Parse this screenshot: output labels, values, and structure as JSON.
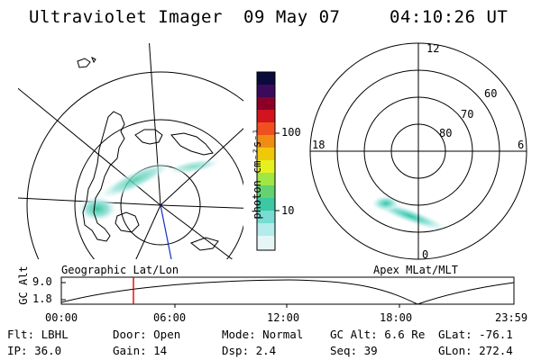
{
  "header": {
    "instrument": "Ultraviolet Imager",
    "date": "09 May 07",
    "time": "04:10:26 UT"
  },
  "panels": {
    "left_label": "Geographic Lat/Lon",
    "right_label": "Apex MLat/MLT"
  },
  "colorbar": {
    "unit_label": "photon cm⁻²s⁻¹",
    "ticks": [
      "100",
      "10"
    ],
    "colors": [
      "#0a0a3c",
      "#3c0a5a",
      "#8c0028",
      "#d2141e",
      "#f05020",
      "#f08c14",
      "#f0c80a",
      "#e6f01e",
      "#a0e646",
      "#64d26e",
      "#3cc8a0",
      "#78dcd2",
      "#b4ebeb",
      "#e6f5f5"
    ]
  },
  "polar_plot": {
    "mlt_labels": [
      "12",
      "18",
      "6",
      "0"
    ],
    "lat_labels": [
      "60",
      "70",
      "80"
    ]
  },
  "timeline": {
    "ylabel": "GC Alt",
    "ytick_top": "9.0",
    "ytick_bottom": "1.8",
    "xticks": [
      "00:00",
      "06:00",
      "12:00",
      "18:00",
      "23:59"
    ],
    "marker_color": "#e00000"
  },
  "info": {
    "filter": "Flt: LBHL",
    "door": "Door: Open",
    "mode": "Mode: Normal",
    "gc_alt": "GC Alt: 6.6 Re",
    "glat": "GLat: -76.1",
    "ip": "IP: 36.0",
    "gain": "Gain: 14",
    "dsp": "Dsp:    2.4",
    "seq": "Seq: 39",
    "glon": "GLon: 272.4"
  }
}
